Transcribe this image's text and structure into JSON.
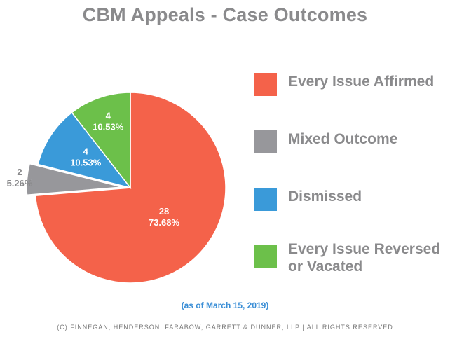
{
  "chart_data": {
    "type": "pie",
    "title": "CBM Appeals - Case Outcomes",
    "slices": [
      {
        "label": "Every Issue Affirmed",
        "legend": "Every Issue Affirmed",
        "count": "28",
        "percent": "73.68%",
        "value": 28,
        "color": "#f4624a"
      },
      {
        "label": "Mixed Outcome",
        "legend": "Mixed Outcome",
        "count": "2",
        "percent": "5.26%",
        "value": 2,
        "color": "#97979b"
      },
      {
        "label": "Dismissed",
        "legend": "Dismissed",
        "count": "4",
        "percent": "10.53%",
        "value": 4,
        "color": "#3a9ad9"
      },
      {
        "label": "Every Issue Reversed or Vacated",
        "legend": "Every Issue Reversed\nor Vacated",
        "count": "4",
        "percent": "10.53%",
        "value": 4,
        "color": "#6cc04a"
      }
    ],
    "legend_position": "right",
    "start_angle_deg": 0,
    "direction": "clockwise",
    "exploded_slice": "Mixed Outcome"
  },
  "note": "(as of March 15, 2019)",
  "footer": "(C) FINNEGAN, HENDERSON, FARABOW, GARRETT & DUNNER, LLP | ALL RIGHTS RESERVED"
}
